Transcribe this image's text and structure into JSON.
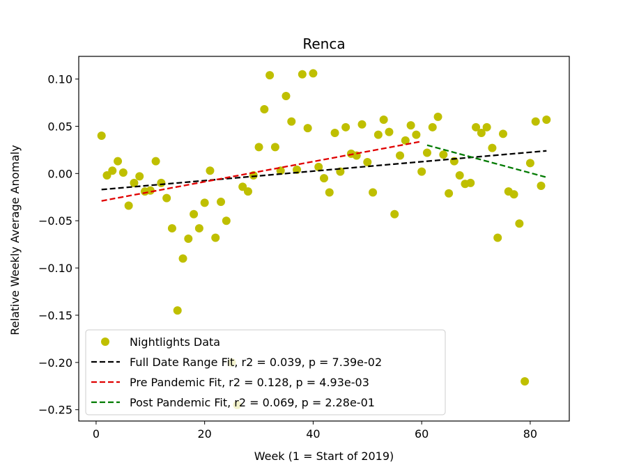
{
  "chart_data": {
    "type": "scatter",
    "title": "Renca",
    "xlabel": "Week (1 = Start of 2019)",
    "ylabel": "Relative Weekly Average Anomaly",
    "xlim": [
      -3.2,
      87.2
    ],
    "ylim": [
      -0.262,
      0.124
    ],
    "xticks": [
      0,
      20,
      40,
      60,
      80
    ],
    "xtick_labels": [
      "0",
      "20",
      "40",
      "60",
      "80"
    ],
    "yticks": [
      0.1,
      0.05,
      0.0,
      -0.05,
      -0.1,
      -0.15,
      -0.2,
      -0.25
    ],
    "ytick_labels": [
      "0.10",
      "0.05",
      "0.00",
      "−0.05",
      "−0.10",
      "−0.15",
      "−0.20",
      "−0.25"
    ],
    "grid": false,
    "legend_position": "lower-left",
    "colors": {
      "points": "#bfbf00",
      "full_fit": "#000000",
      "pre_fit": "#e00000",
      "post_fit": "#007a00"
    },
    "series": [
      {
        "name": "Nightlights Data",
        "kind": "scatter",
        "points": [
          [
            1,
            0.04
          ],
          [
            2,
            -0.002
          ],
          [
            3,
            0.003
          ],
          [
            4,
            0.013
          ],
          [
            5,
            0.001
          ],
          [
            6,
            -0.034
          ],
          [
            7,
            -0.01
          ],
          [
            8,
            -0.003
          ],
          [
            9,
            -0.019
          ],
          [
            10,
            -0.018
          ],
          [
            11,
            0.013
          ],
          [
            12,
            -0.01
          ],
          [
            13,
            -0.026
          ],
          [
            14,
            -0.058
          ],
          [
            15,
            -0.145
          ],
          [
            16,
            -0.09
          ],
          [
            17,
            -0.069
          ],
          [
            18,
            -0.043
          ],
          [
            19,
            -0.058
          ],
          [
            20,
            -0.031
          ],
          [
            21,
            0.003
          ],
          [
            22,
            -0.068
          ],
          [
            23,
            -0.03
          ],
          [
            24,
            -0.05
          ],
          [
            25,
            -0.2
          ],
          [
            26,
            -0.245
          ],
          [
            27,
            -0.014
          ],
          [
            28,
            -0.019
          ],
          [
            29,
            -0.002
          ],
          [
            30,
            0.028
          ],
          [
            31,
            0.068
          ],
          [
            32,
            0.104
          ],
          [
            33,
            0.028
          ],
          [
            34,
            0.003
          ],
          [
            35,
            0.082
          ],
          [
            36,
            0.055
          ],
          [
            37,
            0.004
          ],
          [
            38,
            0.105
          ],
          [
            39,
            0.048
          ],
          [
            40,
            0.106
          ],
          [
            41,
            0.007
          ],
          [
            42,
            -0.005
          ],
          [
            43,
            -0.02
          ],
          [
            44,
            0.043
          ],
          [
            45,
            0.002
          ],
          [
            46,
            0.049
          ],
          [
            47,
            0.021
          ],
          [
            48,
            0.019
          ],
          [
            49,
            0.052
          ],
          [
            50,
            0.012
          ],
          [
            51,
            -0.02
          ],
          [
            52,
            0.041
          ],
          [
            53,
            0.057
          ],
          [
            54,
            0.044
          ],
          [
            55,
            -0.043
          ],
          [
            56,
            0.019
          ],
          [
            57,
            0.035
          ],
          [
            58,
            0.051
          ],
          [
            59,
            0.041
          ],
          [
            60,
            0.002
          ],
          [
            61,
            0.022
          ],
          [
            62,
            0.049
          ],
          [
            63,
            0.06
          ],
          [
            64,
            0.02
          ],
          [
            65,
            -0.021
          ],
          [
            66,
            0.013
          ],
          [
            67,
            -0.002
          ],
          [
            68,
            -0.011
          ],
          [
            69,
            -0.01
          ],
          [
            70,
            0.049
          ],
          [
            71,
            0.043
          ],
          [
            72,
            0.049
          ],
          [
            73,
            0.027
          ],
          [
            74,
            -0.068
          ],
          [
            75,
            0.042
          ],
          [
            76,
            -0.019
          ],
          [
            77,
            -0.022
          ],
          [
            78,
            -0.053
          ],
          [
            79,
            -0.22
          ],
          [
            80,
            0.011
          ],
          [
            81,
            0.055
          ],
          [
            82,
            -0.013
          ],
          [
            83,
            0.057
          ]
        ]
      },
      {
        "name": "Full Date Range Fit, r2 = 0.039, p = 7.39e-02",
        "kind": "line",
        "dashed": true,
        "x": [
          1,
          83
        ],
        "y": [
          -0.017,
          0.024
        ]
      },
      {
        "name": "Pre Pandemic Fit, r2 = 0.128, p = 4.93e-03",
        "kind": "line",
        "dashed": true,
        "x": [
          1,
          60
        ],
        "y": [
          -0.029,
          0.034
        ]
      },
      {
        "name": "Post Pandemic Fit, r2 = 0.069, p = 2.28e-01",
        "kind": "line",
        "dashed": true,
        "x": [
          61,
          83
        ],
        "y": [
          0.03,
          -0.004
        ]
      }
    ]
  }
}
